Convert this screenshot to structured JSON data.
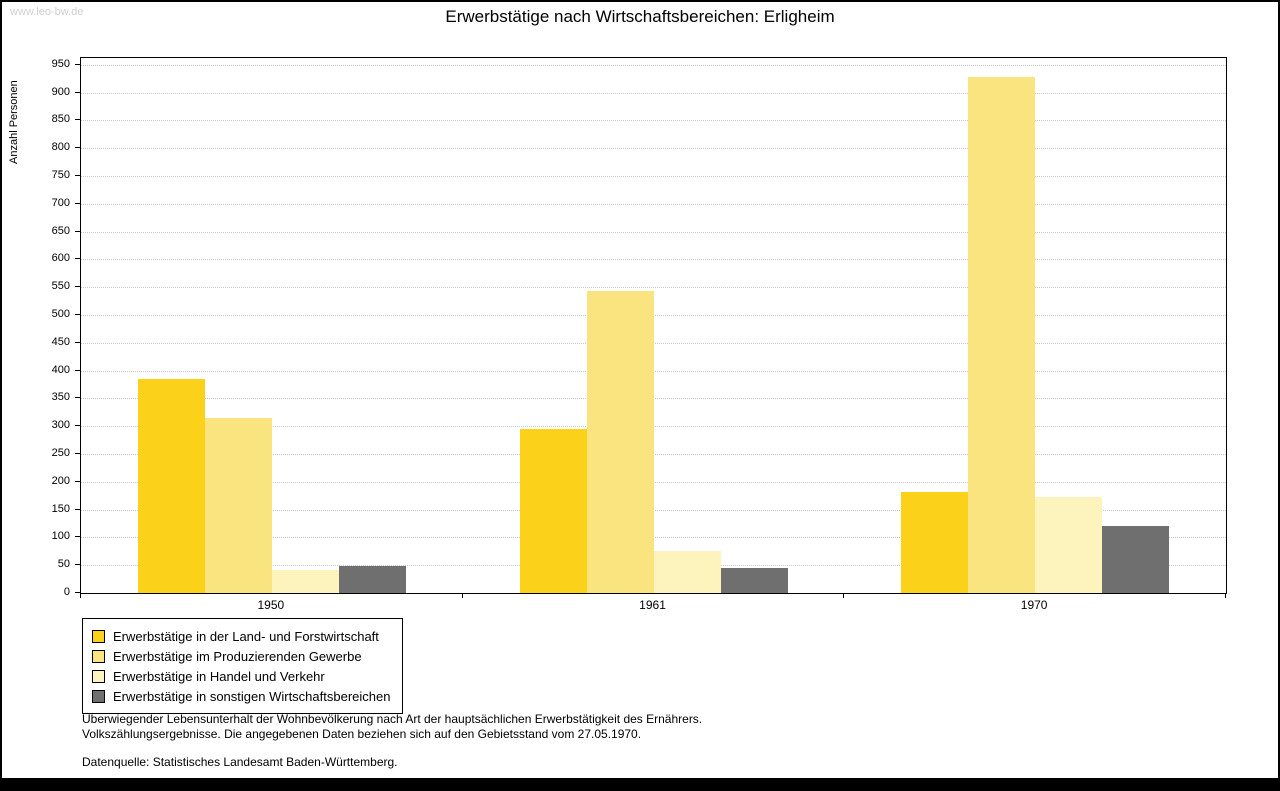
{
  "watermark": "www.leo-bw.de",
  "footnotes": {
    "line1": "Überwiegender Lebensunterhalt der Wohnbevölkerung nach Art der hauptsächlichen Erwerbstätigkeit des Ernährers.",
    "line2": "Volkszählungsergebnisse. Die angegebenen Daten beziehen sich auf den Gebietsstand vom 27.05.1970.",
    "source": "Datenquelle: Statistisches Landesamt Baden-Württemberg."
  },
  "chart_data": {
    "type": "bar",
    "title": "Erwerbstätige nach Wirtschaftsbereichen: Erligheim",
    "ylabel": "Anzahl Personen",
    "xlabel": "",
    "categories": [
      "1950",
      "1961",
      "1970"
    ],
    "series": [
      {
        "name": "Erwerbstätige in der Land- und Forstwirtschaft",
        "color": "#FCD119",
        "values": [
          385,
          295,
          182
        ]
      },
      {
        "name": "Erwerbstätige im Produzierenden Gewerbe",
        "color": "#FAE47F",
        "values": [
          315,
          543,
          928
        ]
      },
      {
        "name": "Erwerbstätige in Handel und Verkehr",
        "color": "#FDF3BC",
        "values": [
          42,
          75,
          173
        ]
      },
      {
        "name": "Erwerbstätige in sonstigen Wirtschaftsbereichen",
        "color": "#6F6F6F",
        "values": [
          48,
          45,
          120
        ]
      }
    ],
    "ylim": [
      0,
      950
    ],
    "ytick_step": 50,
    "grid": true,
    "legend_position": "bottom-left"
  }
}
